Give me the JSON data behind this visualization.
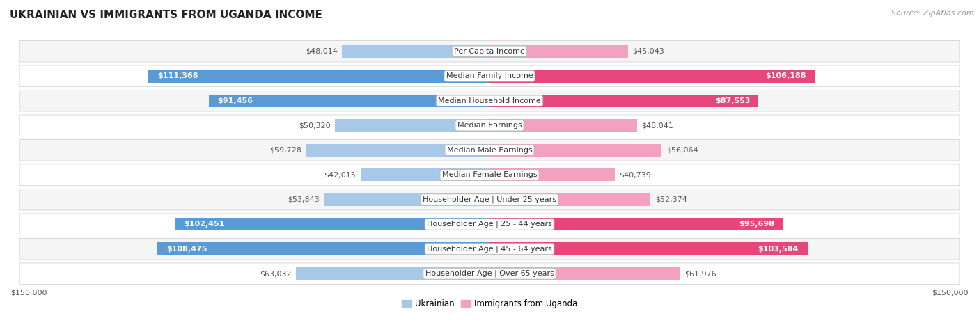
{
  "title": "UKRAINIAN VS IMMIGRANTS FROM UGANDA INCOME",
  "source": "Source: ZipAtlas.com",
  "categories": [
    "Per Capita Income",
    "Median Family Income",
    "Median Household Income",
    "Median Earnings",
    "Median Male Earnings",
    "Median Female Earnings",
    "Householder Age | Under 25 years",
    "Householder Age | 25 - 44 years",
    "Householder Age | 45 - 64 years",
    "Householder Age | Over 65 years"
  ],
  "ukrainian_values": [
    48014,
    111368,
    91456,
    50320,
    59728,
    42015,
    53843,
    102451,
    108475,
    63032
  ],
  "uganda_values": [
    45043,
    106188,
    87553,
    48041,
    56064,
    40739,
    52374,
    95698,
    103584,
    61976
  ],
  "ukrainian_labels": [
    "$48,014",
    "$111,368",
    "$91,456",
    "$50,320",
    "$59,728",
    "$42,015",
    "$53,843",
    "$102,451",
    "$108,475",
    "$63,032"
  ],
  "uganda_labels": [
    "$45,043",
    "$106,188",
    "$87,553",
    "$48,041",
    "$56,064",
    "$40,739",
    "$52,374",
    "$95,698",
    "$103,584",
    "$61,976"
  ],
  "ukr_inside": [
    false,
    true,
    true,
    false,
    false,
    false,
    false,
    true,
    true,
    false
  ],
  "uga_inside": [
    false,
    true,
    true,
    false,
    false,
    false,
    false,
    true,
    true,
    false
  ],
  "ukrainian_color_light": "#a8c8e8",
  "ukrainian_color_dark": "#5b9bd5",
  "uganda_color_light": "#f4a0c0",
  "uganda_color_dark": "#e8457a",
  "label_outside_color": "#555555",
  "label_inside_color": "#ffffff",
  "max_value": 150000,
  "row_bg_light": "#f5f5f5",
  "row_bg_dark": "#e8e8e8",
  "row_border_color": "#cccccc",
  "background_color": "#ffffff",
  "title_fontsize": 11,
  "source_fontsize": 8,
  "label_fontsize": 8,
  "category_fontsize": 8,
  "axis_label_fontsize": 8,
  "legend_fontsize": 8.5,
  "bar_height": 0.52,
  "legend_ukr": "Ukrainian",
  "legend_uga": "Immigrants from Uganda"
}
